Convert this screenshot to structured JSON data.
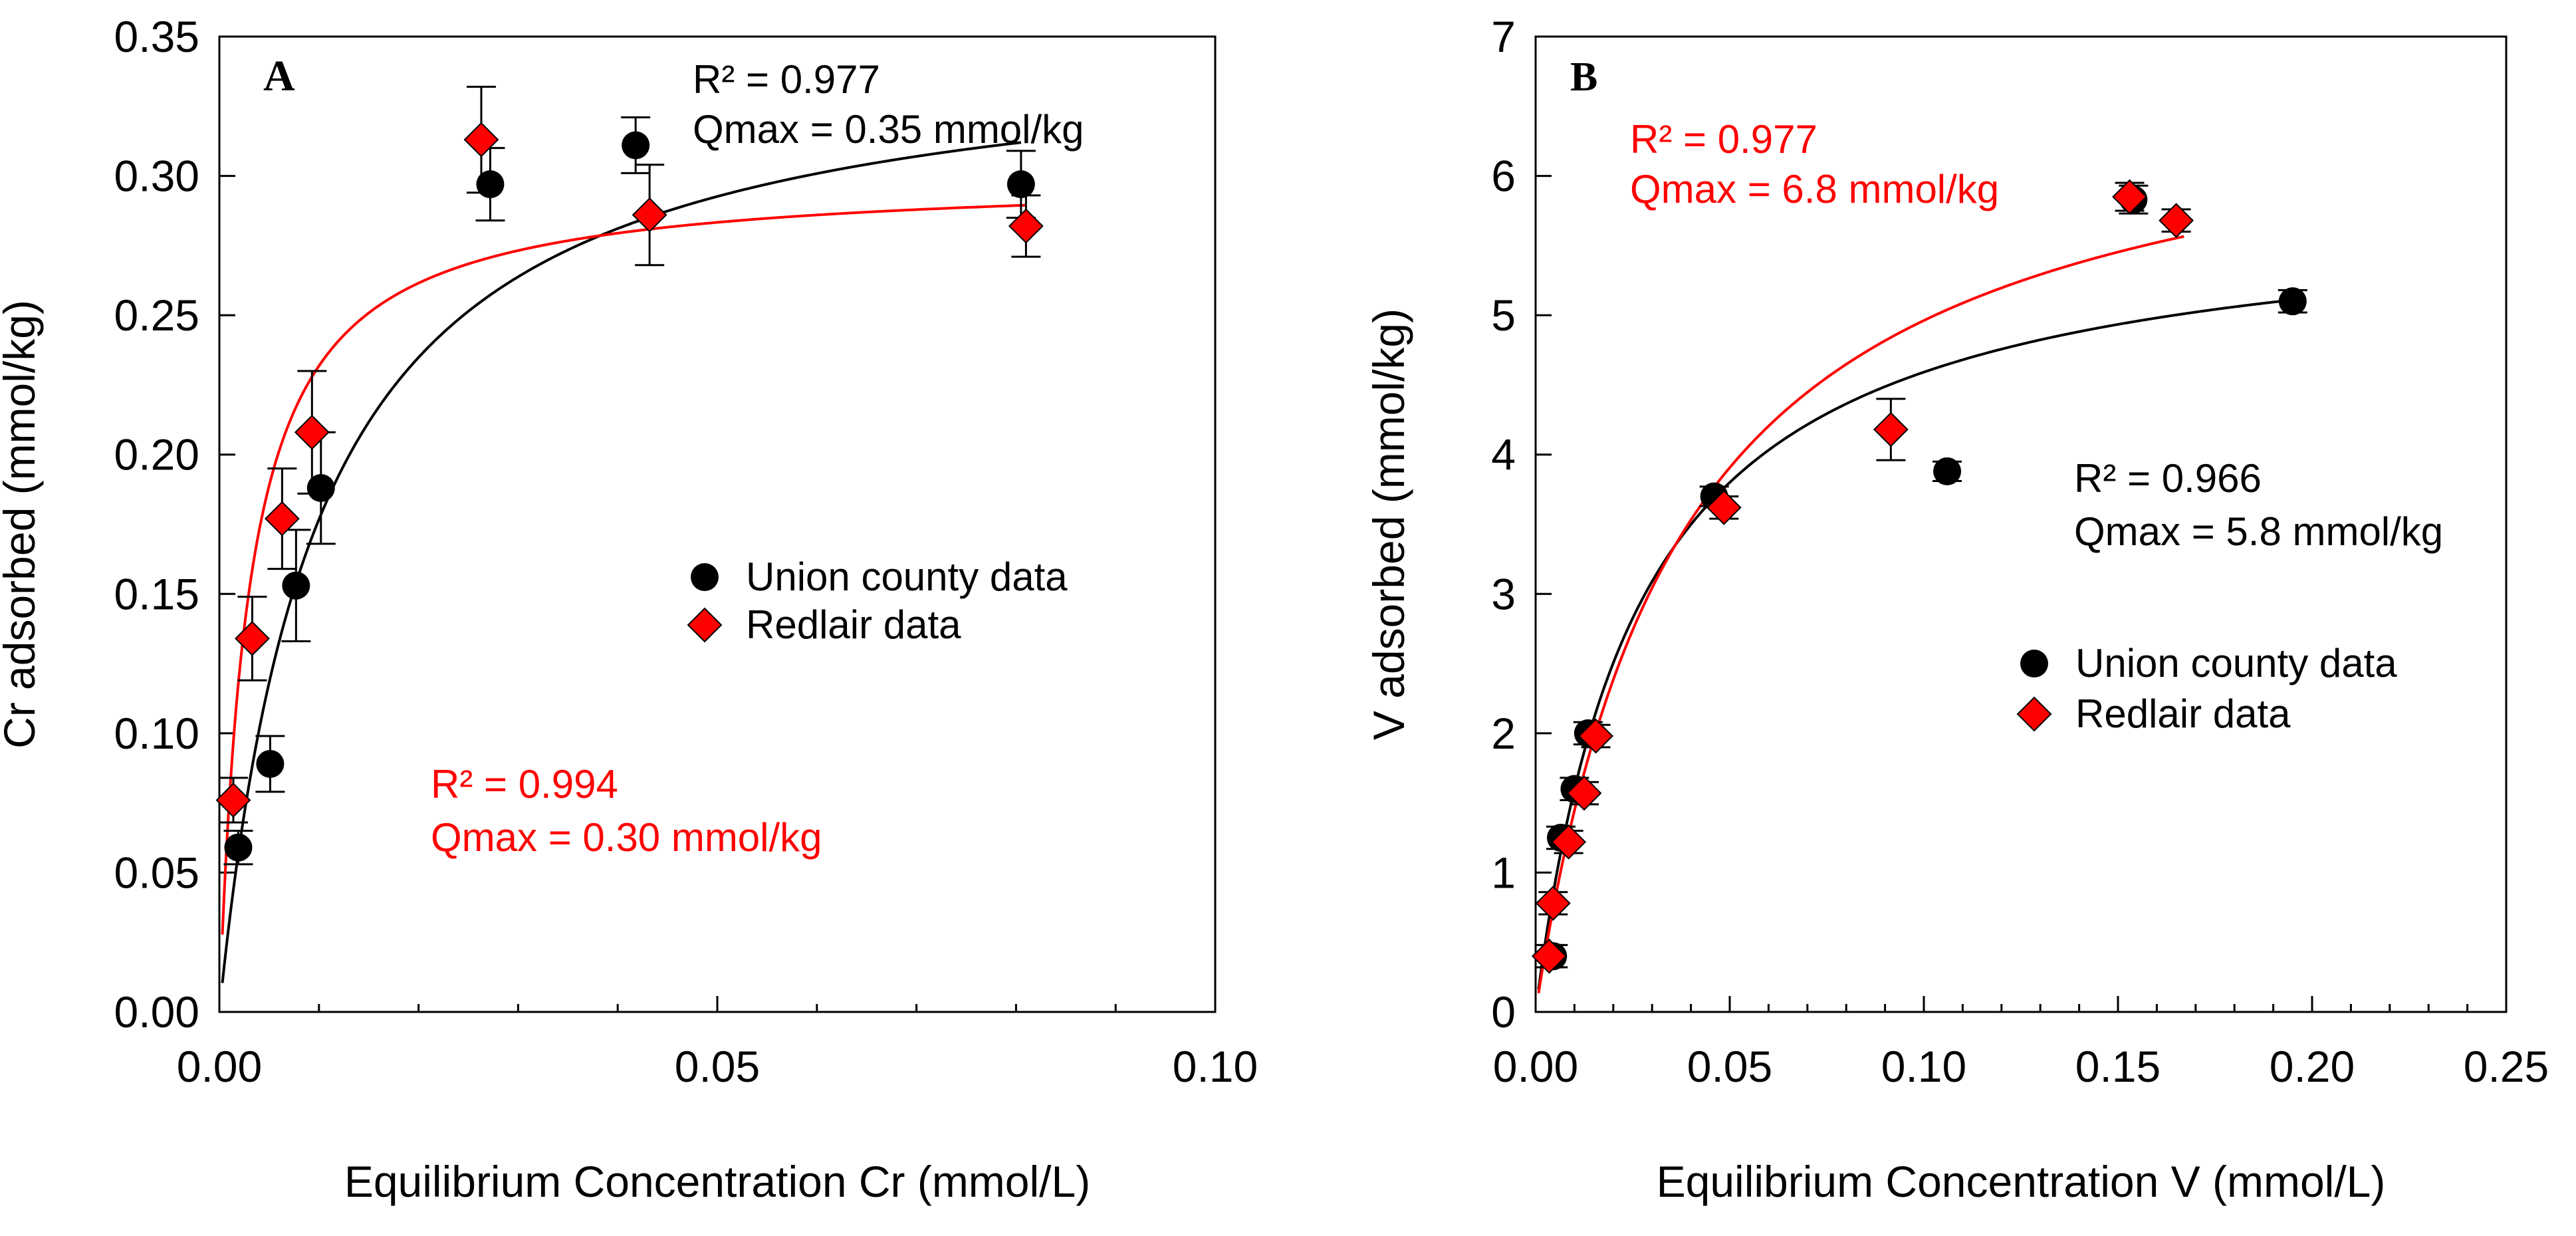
{
  "chart_data": [
    {
      "panel_label": "A",
      "type": "scatter",
      "title": "",
      "xlabel": "Equilibrium Concentration Cr (mmol/L)",
      "ylabel": "Cr adsorbed (mmol/kg)",
      "xlim": [
        0,
        0.1
      ],
      "ylim": [
        0,
        0.35
      ],
      "x_ticks": [
        0,
        0.05,
        0.1
      ],
      "x_tick_labels": [
        "0.00",
        "0.05",
        "0.10"
      ],
      "x_minor_step": 0.01,
      "y_ticks": [
        0,
        0.05,
        0.1,
        0.15,
        0.2,
        0.25,
        0.3,
        0.35
      ],
      "y_tick_labels": [
        "0.00",
        "0.05",
        "0.10",
        "0.15",
        "0.20",
        "0.25",
        "0.30",
        "0.35"
      ],
      "grid": false,
      "legend": {
        "position": "middle-right",
        "entries": [
          "Union county data",
          "Redlair data"
        ]
      },
      "series": [
        {
          "name": "Union county data",
          "marker": "circle",
          "color": "#000000",
          "points": [
            {
              "x": 0.0019,
              "y": 0.059,
              "err": 0.006
            },
            {
              "x": 0.0051,
              "y": 0.089,
              "err": 0.01
            },
            {
              "x": 0.0077,
              "y": 0.153,
              "err": 0.02
            },
            {
              "x": 0.0102,
              "y": 0.188,
              "err": 0.02
            },
            {
              "x": 0.0272,
              "y": 0.297,
              "err": 0.013
            },
            {
              "x": 0.0418,
              "y": 0.311,
              "err": 0.01
            },
            {
              "x": 0.0805,
              "y": 0.297,
              "err": 0.012
            }
          ],
          "fit": {
            "qmax": 0.35,
            "k": 102,
            "color": "#000000",
            "x_end": 0.0805
          }
        },
        {
          "name": "Redlair data",
          "marker": "diamond",
          "color": "#ff0000",
          "points": [
            {
              "x": 0.0014,
              "y": 0.076,
              "err": 0.008
            },
            {
              "x": 0.0033,
              "y": 0.134,
              "err": 0.015
            },
            {
              "x": 0.0063,
              "y": 0.177,
              "err": 0.018
            },
            {
              "x": 0.0093,
              "y": 0.208,
              "err": 0.022
            },
            {
              "x": 0.0263,
              "y": 0.313,
              "err": 0.019
            },
            {
              "x": 0.0432,
              "y": 0.286,
              "err": 0.018
            },
            {
              "x": 0.081,
              "y": 0.282,
              "err": 0.011
            }
          ],
          "fit": {
            "qmax": 0.3,
            "k": 340,
            "color": "#ff0000",
            "x_end": 0.081
          }
        }
      ],
      "annotations": [
        {
          "text": "R² = 0.977",
          "color": "#000000"
        },
        {
          "text": "Qmax = 0.35 mmol/kg",
          "color": "#000000"
        },
        {
          "text": "R² = 0.994",
          "color": "#ff0000"
        },
        {
          "text": "Qmax = 0.30 mmol/kg",
          "color": "#ff0000"
        }
      ]
    },
    {
      "panel_label": "B",
      "type": "scatter",
      "title": "",
      "xlabel": "Equilibrium Concentration V (mmol/L)",
      "ylabel": "V adsorbed (mmol/kg)",
      "xlim": [
        0,
        0.25
      ],
      "ylim": [
        0,
        7
      ],
      "x_ticks": [
        0,
        0.05,
        0.1,
        0.15,
        0.2,
        0.25
      ],
      "x_tick_labels": [
        "0.00",
        "0.05",
        "0.10",
        "0.15",
        "0.20",
        "0.25"
      ],
      "x_minor_step": 0.01,
      "y_ticks": [
        0,
        1,
        2,
        3,
        4,
        5,
        6,
        7
      ],
      "y_tick_labels": [
        "0",
        "1",
        "2",
        "3",
        "4",
        "5",
        "6",
        "7"
      ],
      "grid": false,
      "legend": {
        "position": "lower-right",
        "entries": [
          "Union county data",
          "Redlair data"
        ]
      },
      "series": [
        {
          "name": "Union county data",
          "marker": "circle",
          "color": "#000000",
          "points": [
            {
              "x": 0.0045,
              "y": 0.4,
              "err": 0.08
            },
            {
              "x": 0.0065,
              "y": 1.25,
              "err": 0.08
            },
            {
              "x": 0.01,
              "y": 1.6,
              "err": 0.08
            },
            {
              "x": 0.0135,
              "y": 2.0,
              "err": 0.08
            },
            {
              "x": 0.046,
              "y": 3.7,
              "err": 0.07
            },
            {
              "x": 0.106,
              "y": 3.88,
              "err": 0.07
            },
            {
              "x": 0.154,
              "y": 5.83,
              "err": 0.1
            },
            {
              "x": 0.195,
              "y": 5.1,
              "err": 0.08
            }
          ],
          "fit": {
            "qmax": 5.8,
            "k": 38,
            "color": "#000000",
            "x_end": 0.195
          }
        },
        {
          "name": "Redlair data",
          "marker": "diamond",
          "color": "#ff0000",
          "points": [
            {
              "x": 0.0035,
              "y": 0.4,
              "err": 0.08
            },
            {
              "x": 0.0045,
              "y": 0.78,
              "err": 0.08
            },
            {
              "x": 0.0085,
              "y": 1.22,
              "err": 0.08
            },
            {
              "x": 0.0125,
              "y": 1.57,
              "err": 0.08
            },
            {
              "x": 0.0155,
              "y": 1.98,
              "err": 0.08
            },
            {
              "x": 0.0485,
              "y": 3.62,
              "err": 0.08
            },
            {
              "x": 0.0915,
              "y": 4.18,
              "err": 0.22
            },
            {
              "x": 0.153,
              "y": 5.85,
              "err": 0.1
            },
            {
              "x": 0.165,
              "y": 5.68,
              "err": 0.08
            }
          ],
          "fit": {
            "qmax": 6.8,
            "k": 27,
            "color": "#ff0000",
            "x_end": 0.167
          }
        }
      ],
      "annotations": [
        {
          "text": "R² = 0.977",
          "color": "#ff0000"
        },
        {
          "text": "Qmax = 6.8 mmol/kg",
          "color": "#ff0000"
        },
        {
          "text": "R² = 0.966",
          "color": "#000000"
        },
        {
          "text": "Qmax = 5.8 mmol/kg",
          "color": "#000000"
        }
      ]
    }
  ]
}
